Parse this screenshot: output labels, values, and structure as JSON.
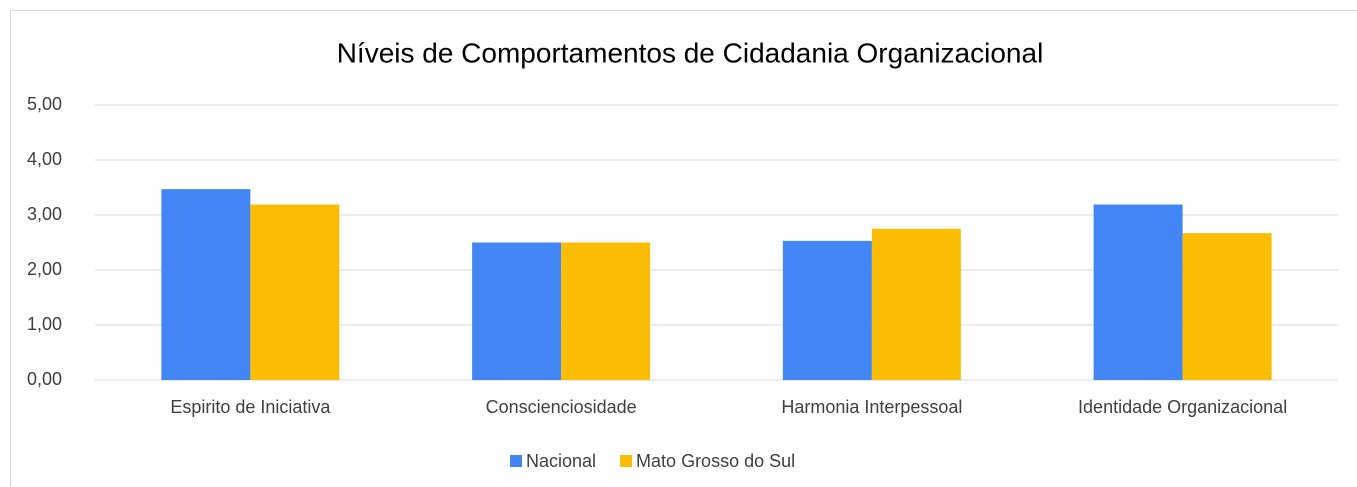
{
  "chart_data": {
    "type": "bar",
    "title": "Níveis de Comportamentos de Cidadania Organizacional",
    "categories": [
      "Espirito de Iniciativa",
      "Conscienciosidade",
      "Harmonia Interpessoal",
      "Identidade Organizacional"
    ],
    "series": [
      {
        "name": "Nacional",
        "color": "#4285f4",
        "values": [
          3.47,
          2.5,
          2.53,
          3.19
        ]
      },
      {
        "name": "Mato Grosso do Sul",
        "color": "#fbbc04",
        "values": [
          3.19,
          2.5,
          2.75,
          2.67
        ]
      }
    ],
    "ylim": [
      0,
      5
    ],
    "yticks": [
      {
        "value": 0,
        "label": "0,00"
      },
      {
        "value": 1,
        "label": "1,00"
      },
      {
        "value": 2,
        "label": "2,00"
      },
      {
        "value": 3,
        "label": "3,00"
      },
      {
        "value": 4,
        "label": "4,00"
      },
      {
        "value": 5,
        "label": "5,00"
      }
    ],
    "grid": true,
    "legend": "bottom"
  }
}
